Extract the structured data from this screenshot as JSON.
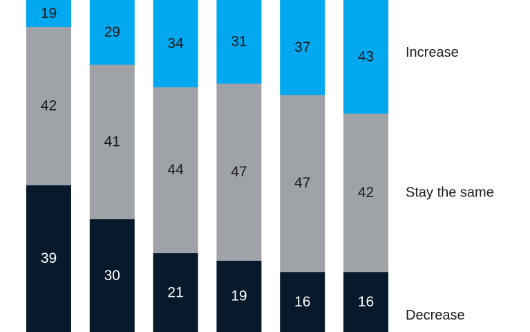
{
  "chart_data": {
    "type": "bar",
    "stacked": true,
    "categories": [
      "",
      "",
      "",
      "",
      "",
      ""
    ],
    "series": [
      {
        "name": "Decrease",
        "values": [
          39,
          30,
          21,
          19,
          16,
          16
        ],
        "color": "#061a2b",
        "label_color": "#ffffff"
      },
      {
        "name": "Stay the same",
        "values": [
          42,
          41,
          44,
          47,
          47,
          42
        ],
        "color": "#9fa3a8",
        "label_color": "#1a1a1a"
      },
      {
        "name": "Increase",
        "values": [
          19,
          29,
          34,
          31,
          37,
          43
        ],
        "color": "#00a8f0",
        "label_color": "#1a1a1a"
      }
    ],
    "ylim": [
      0,
      100
    ],
    "grid": false,
    "legend": "right"
  }
}
